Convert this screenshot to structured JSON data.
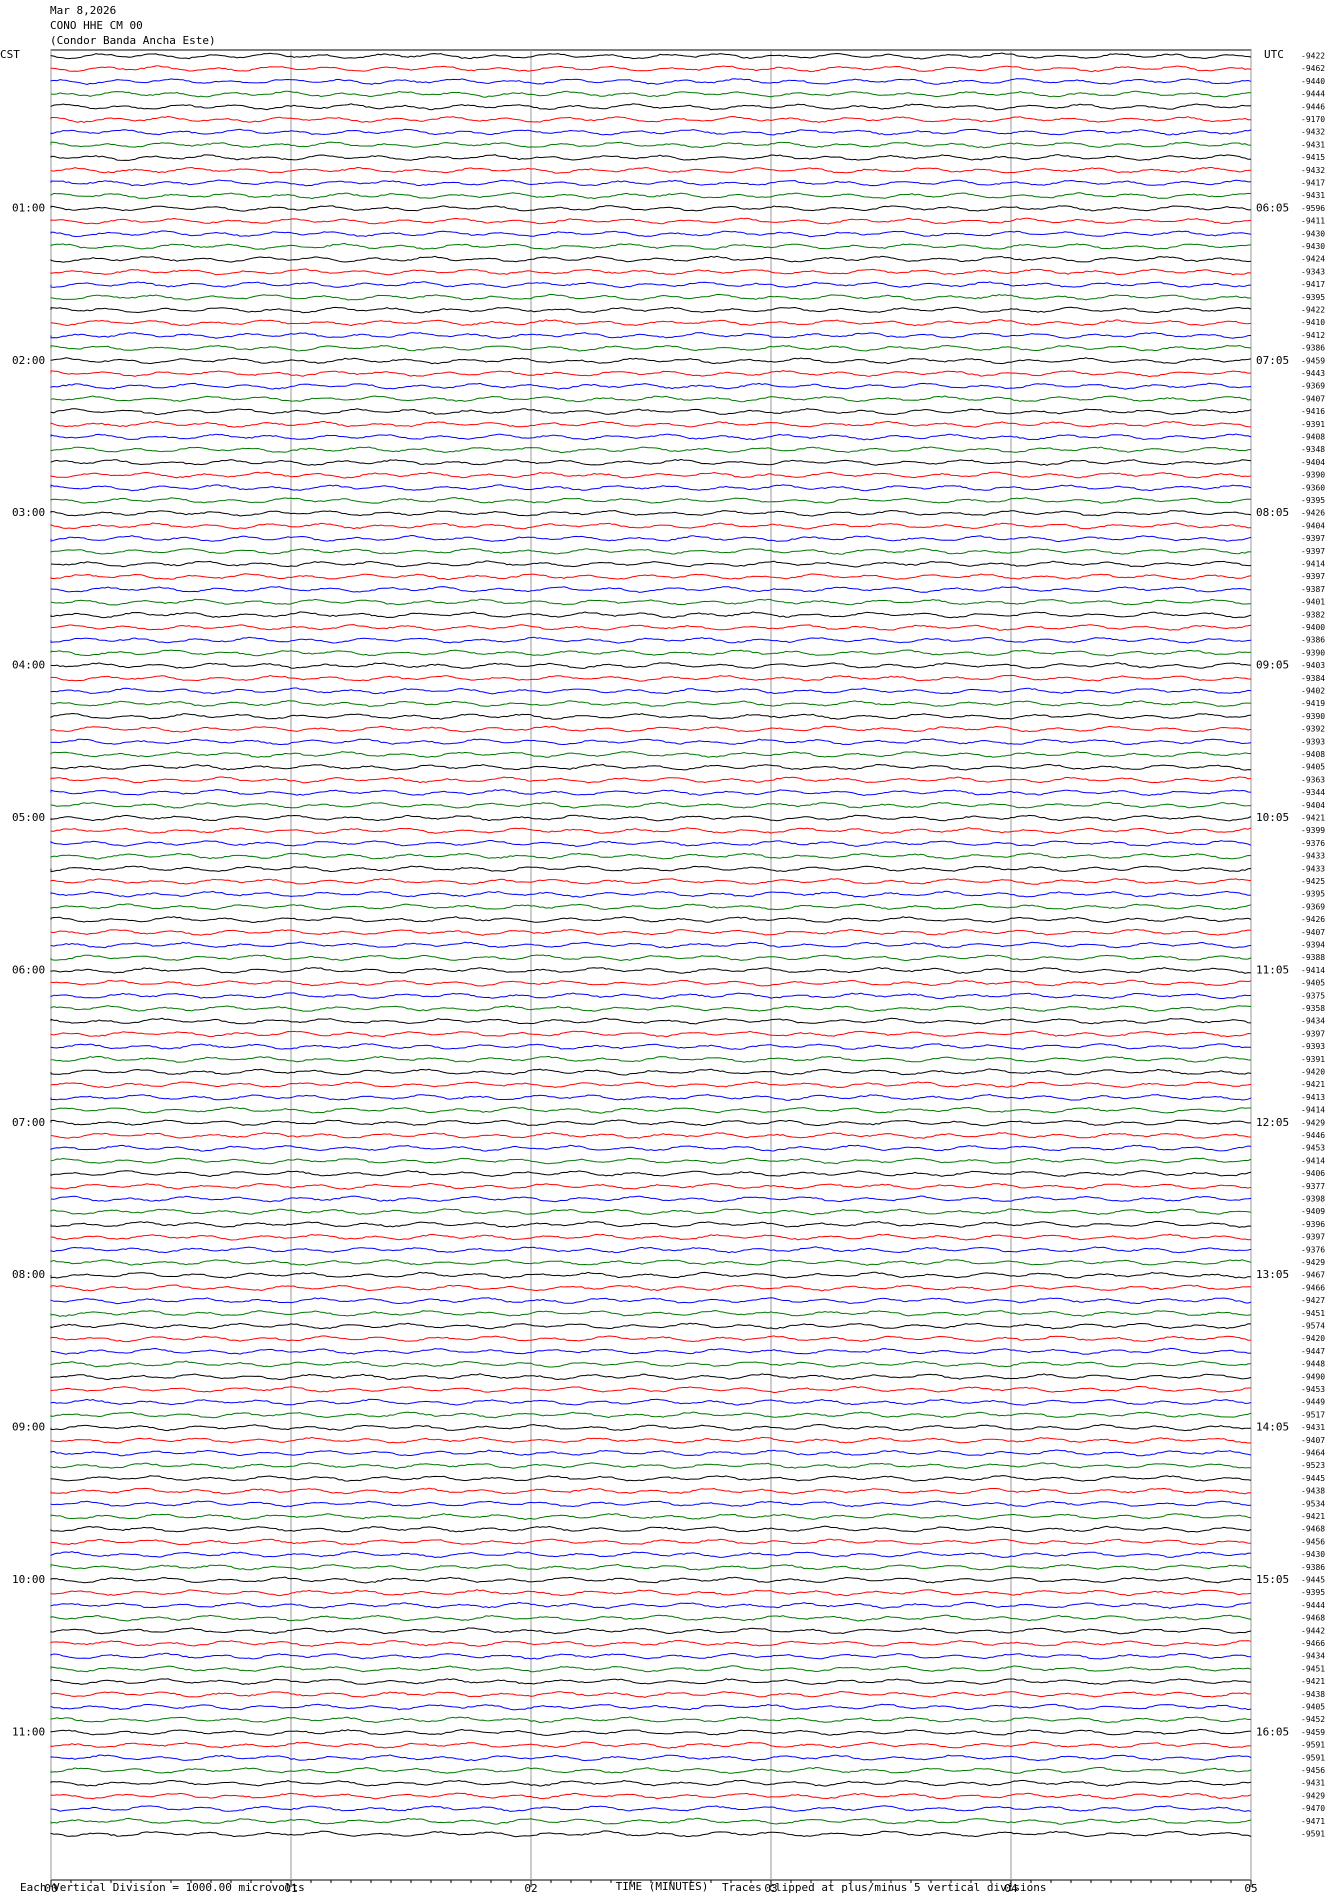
{
  "chart_data": {
    "type": "helicorder",
    "date": "Mar 8,2026",
    "station": "CONO HHE CM 00",
    "station_name": "(Condor Banda Ancha Este)",
    "left_zone": "CST",
    "right_zone": "UTC",
    "left_labels": [
      "01:00",
      "02:00",
      "03:00",
      "04:00",
      "05:00",
      "06:00",
      "07:00",
      "08:00",
      "09:00",
      "10:00",
      "11:00"
    ],
    "right_labels": [
      "06:05",
      "07:05",
      "08:05",
      "09:05",
      "10:05",
      "11:05",
      "12:05",
      "13:05",
      "14:05",
      "15:05",
      "16:05"
    ],
    "trace_labels": [
      -9422,
      -9462,
      -9440,
      -9444,
      -9446,
      -9170,
      -9432,
      -9431,
      -9415,
      -9432,
      -9417,
      -9431,
      -9596,
      -9411,
      -9430,
      -9430,
      -9424,
      -9343,
      -9417,
      -9395,
      -9422,
      -9410,
      -9412,
      -9386,
      -9459,
      -9443,
      -9369,
      -9407,
      -9416,
      -9391,
      -9408,
      -9348,
      -9404,
      -9390,
      -9360,
      -9395,
      -9426,
      -9404,
      -9397,
      -9397,
      -9414,
      -9397,
      -9387,
      -9401,
      -9382,
      -9400,
      -9386,
      -9390,
      -9403,
      -9384,
      -9402,
      -9419,
      -9390,
      -9392,
      -9393,
      -9408,
      -9405,
      -9363,
      -9344,
      -9404,
      -9421,
      -9399,
      -9376,
      -9433,
      -9433,
      -9425,
      -9395,
      -9369,
      -9426,
      -9407,
      -9394,
      -9388,
      -9414,
      -9405,
      -9375,
      -9358,
      -9434,
      -9397,
      -9393,
      -9391,
      -9420,
      -9421,
      -9413,
      -9414,
      -9429,
      -9446,
      -9453,
      -9414,
      -9406,
      -9377,
      -9398,
      -9409,
      -9396,
      -9397,
      -9376,
      -9429,
      -9467,
      -9466,
      -9427,
      -9451,
      -9574,
      -9420,
      -9447,
      -9448,
      -9490,
      -9453,
      -9449,
      -9517,
      -9431,
      -9407,
      -9464,
      -9523,
      -9445,
      -9438,
      -9534,
      -9421,
      -9468,
      -9456,
      -9430,
      -9386,
      -9445,
      -9395,
      -9444,
      -9468,
      -9442,
      -9466,
      -9434,
      -9451,
      -9421,
      -9438,
      -9405,
      -9452,
      -9459,
      -9591,
      -9591,
      -9456,
      -9431,
      -9429,
      -9470,
      -9471,
      -9591
    ],
    "trace_colors": [
      "#000000",
      "#ff0000",
      "#0000ff",
      "#007700"
    ],
    "xlabel": "TIME (MINUTES)",
    "xlim": [
      0,
      5
    ],
    "xticks": [
      {
        "value": 0,
        "label": "00"
      },
      {
        "value": 1,
        "label": "01"
      },
      {
        "value": 2,
        "label": "02"
      },
      {
        "value": 3,
        "label": "03"
      },
      {
        "value": 4,
        "label": "04"
      },
      {
        "value": 5,
        "label": "05"
      }
    ],
    "scale_note": "Each Vertical Division = 1000.00 microvolts",
    "clip_note": "Traces clipped at plus/minus 5 vertical divisions",
    "grid": true
  }
}
